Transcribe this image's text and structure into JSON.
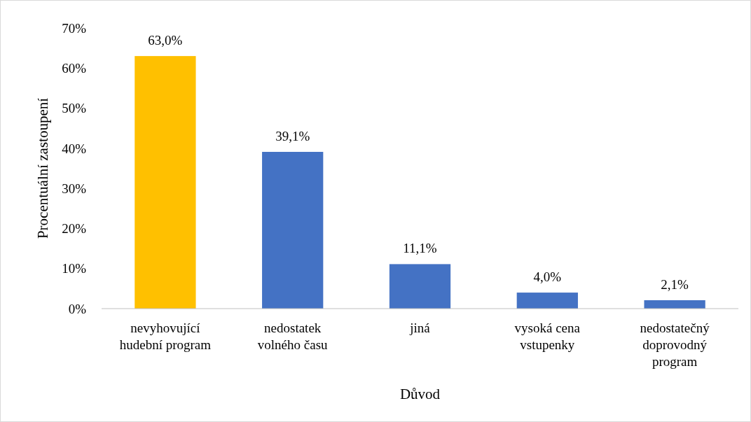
{
  "chart_data": {
    "type": "bar",
    "xlabel": "Důvod",
    "ylabel": "Procentuální zastoupení",
    "categories": [
      "nevyhovující hudební program",
      "nedostatek volného času",
      "jiná",
      "vysoká cena vstupenky",
      "nedostatečný doprovodný program"
    ],
    "values": [
      63.0,
      39.1,
      11.1,
      4.0,
      2.1
    ],
    "colors": [
      "#ffc000",
      "#4472c4",
      "#4472c4",
      "#4472c4",
      "#4472c4"
    ],
    "ylim": [
      0,
      70
    ],
    "yticks": [
      {
        "value": 0,
        "label": "0%"
      },
      {
        "value": 10,
        "label": "10%"
      },
      {
        "value": 20,
        "label": "20%"
      },
      {
        "value": 30,
        "label": "30%"
      },
      {
        "value": 40,
        "label": "40%"
      },
      {
        "value": 50,
        "label": "50%"
      },
      {
        "value": 60,
        "label": "60%"
      },
      {
        "value": 70,
        "label": "70%"
      }
    ],
    "value_labels": [
      "63,0%",
      "39,1%",
      "11,1%",
      "4,0%",
      "2,1%"
    ],
    "grid": false
  }
}
